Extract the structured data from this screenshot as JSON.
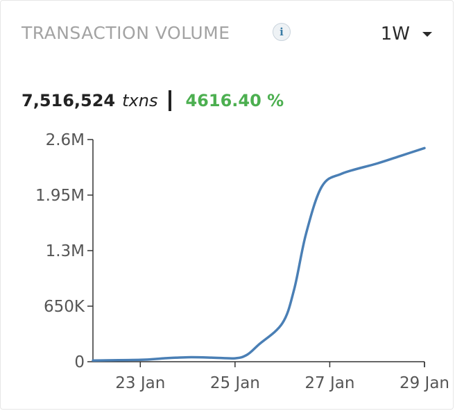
{
  "header": {
    "title": "TRANSACTION VOLUME",
    "info_glyph": "i",
    "range_selected": "1W"
  },
  "summary": {
    "total": "7,516,524",
    "unit": "txns",
    "change": "4616.40 %",
    "change_color": "#4caf50"
  },
  "chart_data": {
    "type": "line",
    "title": "",
    "xlabel": "",
    "ylabel": "",
    "ylim": [
      0,
      2600000
    ],
    "y_ticks": [
      0,
      650000,
      1300000,
      1950000,
      2600000
    ],
    "y_tick_labels": [
      "0",
      "650K",
      "1.3M",
      "1.95M",
      "2.6M"
    ],
    "x_ticks": [
      "2024-01-23",
      "2024-01-25",
      "2024-01-27",
      "2024-01-29"
    ],
    "x_tick_labels": [
      "23 Jan",
      "25 Jan",
      "27 Jan",
      "29 Jan"
    ],
    "xlim": [
      "2024-01-22T00:00",
      "2024-01-29T00:00"
    ],
    "grid": false,
    "series": [
      {
        "color": "#4a7fb5",
        "points": [
          {
            "x": "2024-01-22T00:00",
            "y": 15000
          },
          {
            "x": "2024-01-23T00:00",
            "y": 22000
          },
          {
            "x": "2024-01-23T12:00",
            "y": 40000
          },
          {
            "x": "2024-01-24T00:00",
            "y": 52000
          },
          {
            "x": "2024-01-24T12:00",
            "y": 48000
          },
          {
            "x": "2024-01-25T00:00",
            "y": 40000
          },
          {
            "x": "2024-01-25T06:00",
            "y": 80000
          },
          {
            "x": "2024-01-25T12:00",
            "y": 200000
          },
          {
            "x": "2024-01-26T00:00",
            "y": 450000
          },
          {
            "x": "2024-01-26T06:00",
            "y": 850000
          },
          {
            "x": "2024-01-26T12:00",
            "y": 1500000
          },
          {
            "x": "2024-01-26T20:00",
            "y": 2050000
          },
          {
            "x": "2024-01-27T06:00",
            "y": 2200000
          },
          {
            "x": "2024-01-28T00:00",
            "y": 2320000
          },
          {
            "x": "2024-01-28T12:00",
            "y": 2410000
          },
          {
            "x": "2024-01-29T00:00",
            "y": 2500000
          }
        ]
      }
    ]
  }
}
